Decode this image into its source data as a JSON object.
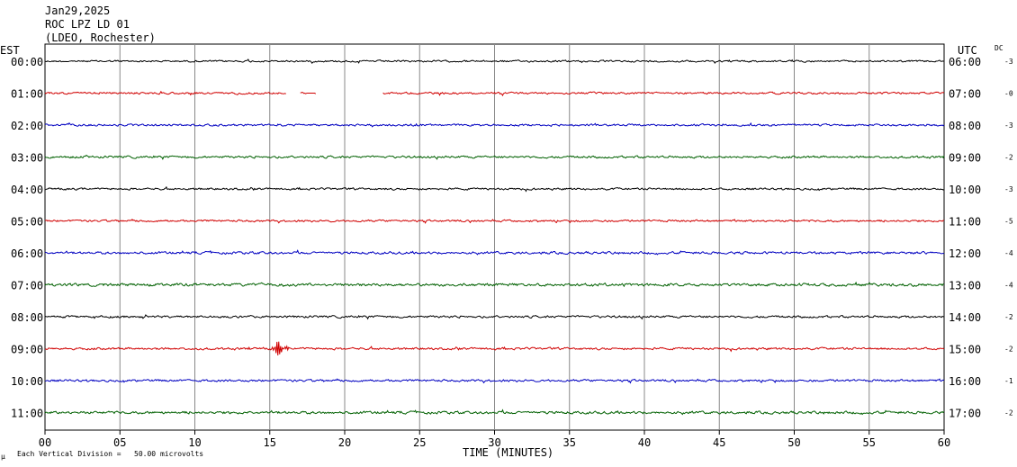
{
  "header": {
    "date": "Jan29,2025",
    "station": "ROC LPZ LD 01",
    "network": "(LDEO, Rochester)"
  },
  "left_axis_title": "EST",
  "right_axis_title": "UTC",
  "dc_title": "DC",
  "footer": {
    "scale_note": "Each Vertical Division =   50.00 microvolts",
    "corner_mark": "μ"
  },
  "chart_data": {
    "type": "line",
    "xlabel": "TIME (MINUTES)",
    "x_ticks": [
      "00",
      "05",
      "10",
      "15",
      "20",
      "25",
      "30",
      "35",
      "40",
      "45",
      "50",
      "55",
      "60"
    ],
    "xlim": [
      0,
      60
    ],
    "grid": "vertical every 5 minutes",
    "rows": [
      {
        "est": "00:00",
        "utc": "06:00",
        "dc": "-3",
        "color": "#000000",
        "noise": 0.9
      },
      {
        "est": "01:00",
        "utc": "07:00",
        "dc": "-0",
        "color": "#d00000",
        "noise": 1.0,
        "gaps": [
          [
            16.1,
            17.0
          ],
          [
            18.1,
            22.5
          ]
        ],
        "segment_flat": [
          17.5,
          18.0
        ]
      },
      {
        "est": "02:00",
        "utc": "08:00",
        "dc": "-3",
        "color": "#0000c0",
        "noise": 1.0
      },
      {
        "est": "03:00",
        "utc": "09:00",
        "dc": "-2",
        "color": "#006000",
        "noise": 1.1
      },
      {
        "est": "04:00",
        "utc": "10:00",
        "dc": "-3",
        "color": "#000000",
        "noise": 1.0
      },
      {
        "est": "05:00",
        "utc": "11:00",
        "dc": "-5",
        "color": "#d00000",
        "noise": 1.0
      },
      {
        "est": "06:00",
        "utc": "12:00",
        "dc": "-4",
        "color": "#0000c0",
        "noise": 1.2
      },
      {
        "est": "07:00",
        "utc": "13:00",
        "dc": "-4",
        "color": "#006000",
        "noise": 1.4
      },
      {
        "est": "08:00",
        "utc": "14:00",
        "dc": "-2",
        "color": "#000000",
        "noise": 1.1
      },
      {
        "est": "09:00",
        "utc": "15:00",
        "dc": "-2",
        "color": "#d00000",
        "noise": 1.1,
        "event": {
          "start": 15.1,
          "peak": 15.5,
          "end": 16.4,
          "amplitude": 10
        }
      },
      {
        "est": "10:00",
        "utc": "16:00",
        "dc": "-1",
        "color": "#0000c0",
        "noise": 1.1
      },
      {
        "est": "11:00",
        "utc": "17:00",
        "dc": "-2",
        "color": "#006000",
        "noise": 1.3
      }
    ]
  }
}
